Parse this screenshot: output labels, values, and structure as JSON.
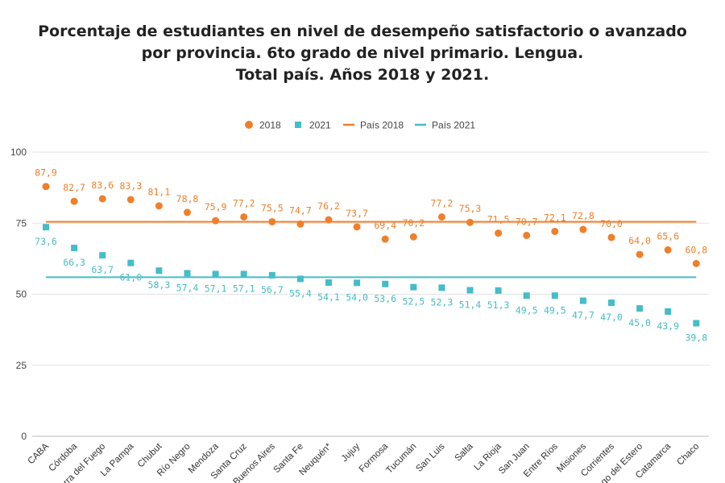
{
  "chart_data": {
    "type": "scatter",
    "title_lines": [
      "Porcentaje de estudiantes en nivel de desempeño satisfactorio o avanzado",
      "por provincia. 6to grado de nivel primario. Lengua.",
      "Total país. Años 2018 y 2021."
    ],
    "categories": [
      "CABA",
      "Córdoba",
      "Tierra del Fuego",
      "La Pampa",
      "Chubut",
      "Río Negro",
      "Mendoza",
      "Santa Cruz",
      "Buenos Aires",
      "Santa Fe",
      "Neuquén*",
      "Jujuy",
      "Formosa",
      "Tucumán",
      "San Luis",
      "Salta",
      "La Rioja",
      "San Juan",
      "Entre Ríos",
      "Misiones",
      "Corrientes",
      "Santiago del Estero",
      "Catamarca",
      "Chaco"
    ],
    "series": [
      {
        "name": "2018",
        "marker": "circle",
        "color": "#f07f2a",
        "values": [
          87.9,
          82.7,
          83.6,
          83.3,
          81.1,
          78.8,
          75.9,
          77.2,
          75.5,
          74.7,
          76.2,
          73.7,
          69.4,
          70.2,
          77.2,
          75.3,
          71.5,
          70.7,
          72.1,
          72.8,
          70.0,
          64.0,
          65.6,
          60.8
        ],
        "labels": [
          "87,9",
          "82,7",
          "83,6",
          "83,3",
          "81,1",
          "78,8",
          "75,9",
          "77,2",
          "75,5",
          "74,7",
          "76,2",
          "73,7",
          "69,4",
          "70,2",
          "77,2",
          "75,3",
          "71,5",
          "70,7",
          "72,1",
          "72,8",
          "70,0",
          "64,0",
          "65,6",
          "60,8"
        ]
      },
      {
        "name": "2021",
        "marker": "square",
        "color": "#45bdc8",
        "values": [
          73.6,
          66.3,
          63.7,
          61.0,
          58.3,
          57.4,
          57.1,
          57.1,
          56.7,
          55.4,
          54.1,
          54.0,
          53.6,
          52.5,
          52.3,
          51.4,
          51.3,
          49.5,
          49.5,
          47.7,
          47.0,
          45.0,
          43.9,
          39.8
        ],
        "labels": [
          "73,6",
          "66,3",
          "63,7",
          "61,0",
          "58,3",
          "57,4",
          "57,1",
          "57,1",
          "56,7",
          "55,4",
          "54,1",
          "54,0",
          "53,6",
          "52,5",
          "52,3",
          "51,4",
          "51,3",
          "49,5",
          "49,5",
          "47,7",
          "47,0",
          "45,0",
          "43,9",
          "39,8"
        ]
      }
    ],
    "reference_lines": [
      {
        "name": "País 2018",
        "value": 75.5,
        "color": "#f07f2a"
      },
      {
        "name": "País 2021",
        "value": 56.0,
        "color": "#45bdc8"
      }
    ],
    "legend": [
      "2018",
      "2021",
      "País 2018",
      "País 2021"
    ],
    "legend_position": "top-center",
    "y_ticks": [
      "0",
      "25",
      "50",
      "75",
      "100"
    ],
    "ylim": [
      0,
      100
    ],
    "grid": true
  }
}
